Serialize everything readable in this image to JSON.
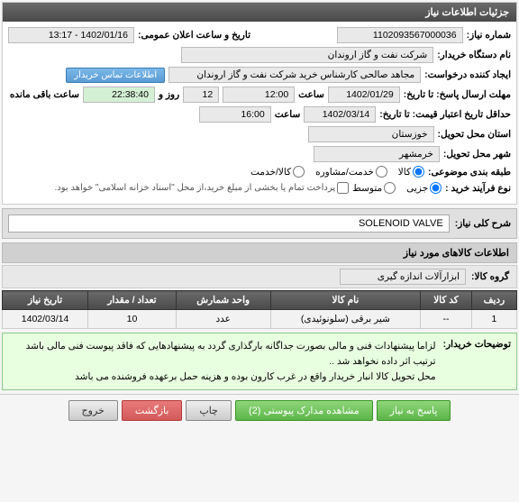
{
  "panel": {
    "title": "جزئیات اطلاعات نیاز"
  },
  "fields": {
    "need_no_label": "شماره نیاز:",
    "need_no": "1102093567000036",
    "announce_label": "تاریخ و ساعت اعلان عمومی:",
    "announce_val": "1402/01/16 - 13:17",
    "buyer_label": "نام دستگاه خریدار:",
    "buyer_val": "شرکت نفت و گاز اروندان",
    "requester_label": "ایجاد کننده درخواست:",
    "requester_val": "مجاهد صالحی کارشناس خرید شرکت نفت و گاز اروندان",
    "contact_btn": "اطلاعات تماس خریدار",
    "deadline_label": "مهلت ارسال پاسخ: تا تاریخ:",
    "deadline_date": "1402/01/29",
    "deadline_time_lbl": "ساعت",
    "deadline_time": "12:00",
    "days_lbl": "روز و",
    "days_val": "12",
    "remain_time": "22:38:40",
    "remain_lbl": "ساعت باقی مانده",
    "validity_label": "حداقل تاریخ اعتبار قیمت: تا تاریخ:",
    "validity_date": "1402/03/14",
    "validity_time": "16:00",
    "province_label": "استان محل تحویل:",
    "province_val": "خوزستان",
    "city_label": "شهر محل تحویل:",
    "city_val": "خرمشهر",
    "category_label": "طبقه بندی موضوعی:",
    "cat_goods": "کالا",
    "cat_service": "خدمت/مشاوره",
    "cat_goods_service": "کالا/خدمت",
    "purchase_type_label": "نوع فرآیند خرید :",
    "pt_partial": "جزیی",
    "pt_medium": "متوسط",
    "purchase_note": "پرداخت تمام یا بخشی از مبلغ خرید،از محل \"اسناد خزانه اسلامی\" خواهد بود.",
    "title_label": "شرح کلی نیاز:",
    "title_val": "SOLENOID VALVE",
    "goods_section": "اطلاعات کالاهای مورد نیاز",
    "group_label": "گروه کالا:",
    "group_val": "ابزارآلات اندازه گیری",
    "desc_label": "توضیحات خریدار:",
    "desc_text1": "لزاما  پیشنهادات فنی و مالی بصورت جداگانه بارگذاری گردد به پیشنهادهایی که فاقد پیوست فنی مالی باشد ترتیب اثر داده نخواهد شد ..",
    "desc_text2": "محل تحویل کالا انبار خریدار واقع در غرب کارون بوده و هزینه حمل برعهده فروشنده می باشد"
  },
  "table": {
    "headers": [
      "ردیف",
      "کد کالا",
      "نام کالا",
      "واحد شمارش",
      "تعداد / مقدار",
      "تاریخ نیاز"
    ],
    "rows": [
      [
        "1",
        "--",
        "شیر برقی (سلونوئیدی)",
        "عدد",
        "10",
        "1402/03/14"
      ]
    ]
  },
  "footer": {
    "respond": "پاسخ به نیاز",
    "attachments": "مشاهده مدارک پیوستی (2)",
    "print": "چاپ",
    "back": "بازگشت",
    "exit": "خروج"
  }
}
